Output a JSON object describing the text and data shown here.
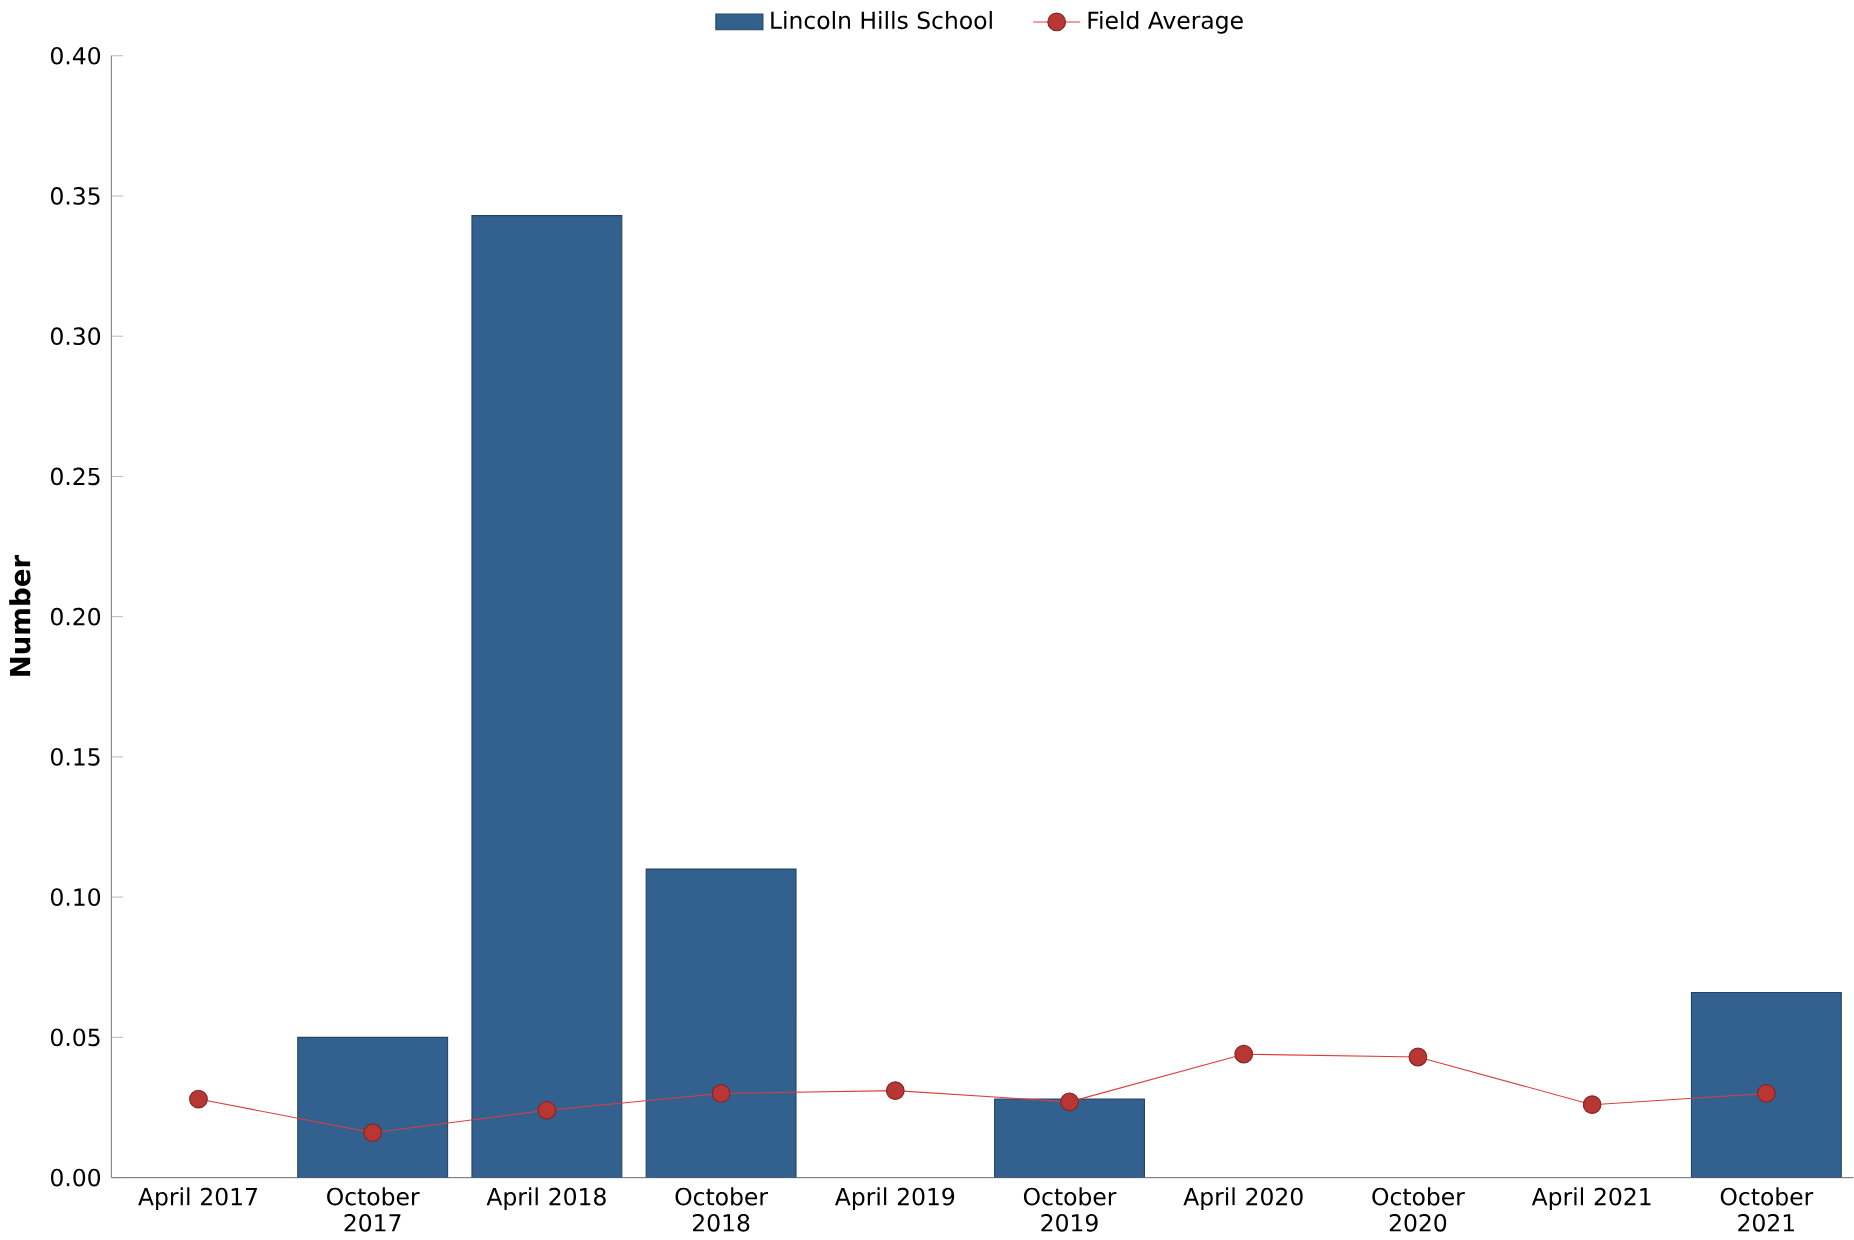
{
  "chart_data": {
    "type": "bar",
    "ylabel": "Number",
    "categories": [
      "April 2017",
      "October 2017",
      "April 2018",
      "October 2018",
      "April 2019",
      "October 2019",
      "April 2020",
      "October 2020",
      "April 2021",
      "October 2021"
    ],
    "series": [
      {
        "name": "Lincoln Hills School",
        "color": "#33618f",
        "values": [
          null,
          0.05,
          0.343,
          0.11,
          null,
          0.028,
          null,
          null,
          null,
          0.066
        ]
      },
      {
        "name": "Field Average",
        "type": "line",
        "color": "#d9403c",
        "marker": "circle",
        "values": [
          0.028,
          0.016,
          0.024,
          0.03,
          0.031,
          0.027,
          0.044,
          0.043,
          0.026,
          0.03
        ]
      }
    ],
    "ylim": [
      0,
      0.4
    ],
    "yticks": [
      {
        "value": 0,
        "label": "0.00"
      },
      {
        "value": 0.05,
        "label": "0.05"
      },
      {
        "value": 0.1,
        "label": "0.10"
      },
      {
        "value": 0.15,
        "label": "0.15"
      },
      {
        "value": 0.2,
        "label": "0.20"
      },
      {
        "value": 0.25,
        "label": "0.25"
      },
      {
        "value": 0.3,
        "label": "0.30"
      },
      {
        "value": 0.35,
        "label": "0.35"
      },
      {
        "value": 0.4,
        "label": "0.40"
      }
    ],
    "grid": false,
    "legend": "top"
  }
}
